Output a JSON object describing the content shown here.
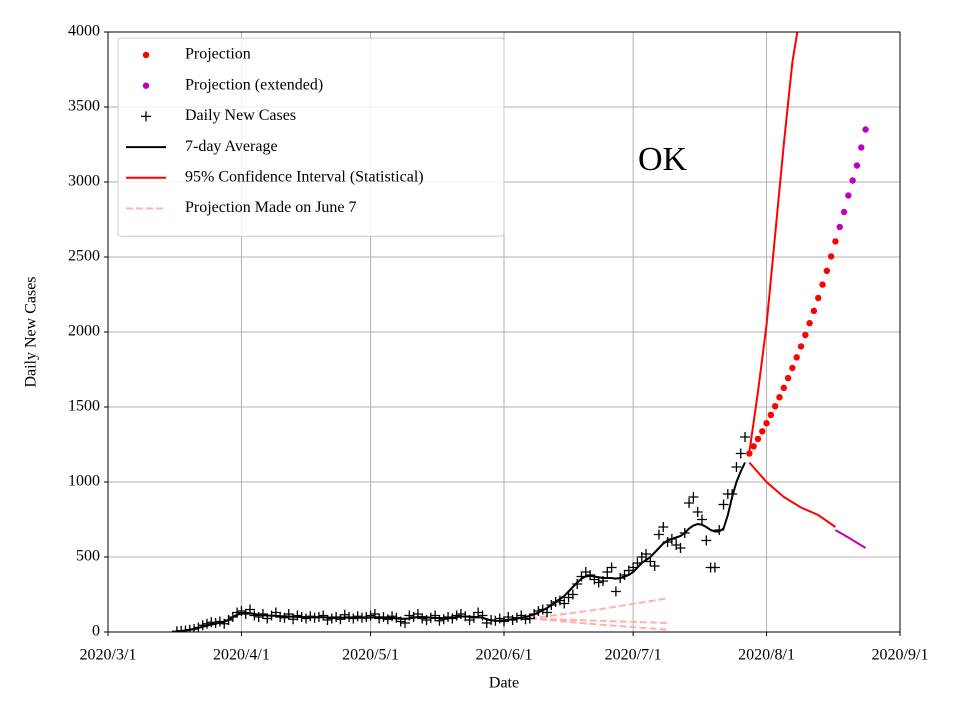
{
  "chart_data": {
    "type": "line",
    "annotation": "OK",
    "xlabel": "Date",
    "ylabel": "Daily New Cases",
    "xlim": [
      "2020/3/1",
      "2020/9/1"
    ],
    "xticks": [
      "2020/3/1",
      "2020/4/1",
      "2020/5/1",
      "2020/6/1",
      "2020/7/1",
      "2020/8/1",
      "2020/9/1"
    ],
    "ylim": [
      0,
      4000
    ],
    "yticks": [
      0,
      500,
      1000,
      1500,
      2000,
      2500,
      3000,
      3500,
      4000
    ],
    "grid": true,
    "legend": "upper left",
    "x": [
      "2020/3/17",
      "2020/3/18",
      "2020/3/19",
      "2020/3/20",
      "2020/3/21",
      "2020/3/22",
      "2020/3/23",
      "2020/3/24",
      "2020/3/25",
      "2020/3/26",
      "2020/3/27",
      "2020/3/28",
      "2020/3/29",
      "2020/3/30",
      "2020/3/31",
      "2020/4/1",
      "2020/4/2",
      "2020/4/3",
      "2020/4/4",
      "2020/4/5",
      "2020/4/6",
      "2020/4/7",
      "2020/4/8",
      "2020/4/9",
      "2020/4/10",
      "2020/4/11",
      "2020/4/12",
      "2020/4/13",
      "2020/4/14",
      "2020/4/15",
      "2020/4/16",
      "2020/4/17",
      "2020/4/18",
      "2020/4/19",
      "2020/4/20",
      "2020/4/21",
      "2020/4/22",
      "2020/4/23",
      "2020/4/24",
      "2020/4/25",
      "2020/4/26",
      "2020/4/27",
      "2020/4/28",
      "2020/4/29",
      "2020/4/30",
      "2020/5/1",
      "2020/5/2",
      "2020/5/3",
      "2020/5/4",
      "2020/5/5",
      "2020/5/6",
      "2020/5/7",
      "2020/5/8",
      "2020/5/9",
      "2020/5/10",
      "2020/5/11",
      "2020/5/12",
      "2020/5/13",
      "2020/5/14",
      "2020/5/15",
      "2020/5/16",
      "2020/5/17",
      "2020/5/18",
      "2020/5/19",
      "2020/5/20",
      "2020/5/21",
      "2020/5/22",
      "2020/5/23",
      "2020/5/24",
      "2020/5/25",
      "2020/5/26",
      "2020/5/27",
      "2020/5/28",
      "2020/5/29",
      "2020/5/30",
      "2020/5/31",
      "2020/6/1",
      "2020/6/2",
      "2020/6/3",
      "2020/6/4",
      "2020/6/5",
      "2020/6/6",
      "2020/6/7",
      "2020/6/8",
      "2020/6/9",
      "2020/6/10",
      "2020/6/11",
      "2020/6/12",
      "2020/6/13",
      "2020/6/14",
      "2020/6/15",
      "2020/6/16",
      "2020/6/17",
      "2020/6/18",
      "2020/6/19",
      "2020/6/20",
      "2020/6/21",
      "2020/6/22",
      "2020/6/23",
      "2020/6/24",
      "2020/6/25",
      "2020/6/26",
      "2020/6/27",
      "2020/6/28",
      "2020/6/29",
      "2020/6/30",
      "2020/7/1",
      "2020/7/2",
      "2020/7/3",
      "2020/7/4",
      "2020/7/5",
      "2020/7/6",
      "2020/7/7",
      "2020/7/8",
      "2020/7/9",
      "2020/7/10",
      "2020/7/11",
      "2020/7/12",
      "2020/7/13",
      "2020/7/14",
      "2020/7/15",
      "2020/7/16",
      "2020/7/17",
      "2020/7/18",
      "2020/7/19",
      "2020/7/20",
      "2020/7/21",
      "2020/7/22",
      "2020/7/23",
      "2020/7/24",
      "2020/7/25",
      "2020/7/26",
      "2020/7/27"
    ],
    "series": [
      {
        "name": "Projection",
        "style": "dots",
        "color": "#ff0000",
        "x": [
          "2020/7/28",
          "2020/7/29",
          "2020/7/30",
          "2020/7/31",
          "2020/8/1",
          "2020/8/2",
          "2020/8/3",
          "2020/8/4",
          "2020/8/5",
          "2020/8/6",
          "2020/8/7",
          "2020/8/8",
          "2020/8/9",
          "2020/8/10",
          "2020/8/11",
          "2020/8/12",
          "2020/8/13",
          "2020/8/14",
          "2020/8/15",
          "2020/8/16",
          "2020/8/17"
        ],
        "values": [
          1190,
          1238,
          1287,
          1338,
          1392,
          1447,
          1505,
          1565,
          1628,
          1693,
          1760,
          1831,
          1904,
          1980,
          2059,
          2141,
          2227,
          2316,
          2408,
          2504,
          2604
        ]
      },
      {
        "name": "Projection (extended)",
        "style": "dots",
        "color": "#bf00bf",
        "x": [
          "2020/8/18",
          "2020/8/19",
          "2020/8/20",
          "2020/8/21",
          "2020/8/22",
          "2020/8/23",
          "2020/8/24"
        ],
        "values": [
          2700,
          2800,
          2910,
          3010,
          3110,
          3230,
          3350
        ]
      },
      {
        "name": "Daily New Cases",
        "style": "plus",
        "color": "#000000",
        "values": [
          5,
          8,
          10,
          15,
          20,
          30,
          45,
          55,
          65,
          60,
          70,
          55,
          80,
          100,
          130,
          140,
          120,
          150,
          110,
          100,
          120,
          90,
          110,
          130,
          100,
          95,
          120,
          85,
          110,
          100,
          90,
          105,
          95,
          100,
          110,
          80,
          90,
          100,
          85,
          115,
          100,
          90,
          105,
          95,
          100,
          110,
          120,
          90,
          100,
          85,
          105,
          95,
          70,
          60,
          110,
          100,
          120,
          90,
          80,
          95,
          110,
          75,
          85,
          100,
          90,
          110,
          120,
          105,
          80,
          95,
          130,
          110,
          60,
          80,
          75,
          90,
          70,
          100,
          80,
          95,
          110,
          85,
          90,
          120,
          140,
          150,
          130,
          180,
          200,
          210,
          190,
          230,
          250,
          320,
          370,
          400,
          380,
          350,
          330,
          340,
          400,
          430,
          270,
          360,
          380,
          410,
          430,
          460,
          500,
          520,
          470,
          440,
          650,
          700,
          600,
          620,
          580,
          560,
          660,
          860,
          900,
          800,
          750,
          610,
          430,
          430,
          680,
          850,
          920,
          920,
          1100,
          1190,
          1300
        ]
      },
      {
        "name": "7-day Average",
        "style": "line",
        "color": "#000000",
        "values": [
          3,
          6,
          10,
          15,
          20,
          28,
          35,
          42,
          50,
          55,
          62,
          68,
          80,
          100,
          115,
          125,
          128,
          125,
          120,
          115,
          112,
          110,
          108,
          108,
          105,
          105,
          103,
          102,
          102,
          100,
          100,
          100,
          100,
          98,
          98,
          97,
          97,
          97,
          96,
          96,
          96,
          95,
          95,
          95,
          95,
          97,
          98,
          98,
          97,
          95,
          93,
          90,
          88,
          88,
          90,
          95,
          100,
          100,
          98,
          95,
          93,
          93,
          92,
          93,
          95,
          100,
          103,
          103,
          102,
          100,
          100,
          95,
          85,
          78,
          75,
          74,
          78,
          82,
          86,
          90,
          95,
          100,
          108,
          118,
          130,
          145,
          160,
          180,
          200,
          220,
          240,
          270,
          300,
          330,
          355,
          370,
          375,
          370,
          365,
          360,
          360,
          360,
          355,
          360,
          370,
          380,
          400,
          430,
          460,
          480,
          500,
          530,
          560,
          590,
          610,
          620,
          630,
          640,
          660,
          690,
          710,
          720,
          715,
          700,
          680,
          670,
          670,
          690,
          780,
          900,
          1000,
          1070,
          1130
        ]
      },
      {
        "name": "95% Confidence Interval (Statistical)",
        "style": "line",
        "color": "#ff0000",
        "x": [
          "2020/7/28",
          "2020/7/30",
          "2020/8/1",
          "2020/8/3",
          "2020/8/5",
          "2020/8/7",
          "2020/8/9"
        ],
        "values": [
          1200,
          1600,
          2050,
          2650,
          3250,
          3800,
          4150
        ]
      },
      {
        "style": "line",
        "color": "#ff0000",
        "x": [
          "2020/7/28",
          "2020/8/1",
          "2020/8/5",
          "2020/8/9",
          "2020/8/13",
          "2020/8/17"
        ],
        "values": [
          1130,
          1000,
          900,
          830,
          780,
          700
        ]
      },
      {
        "style": "line",
        "color": "#bf00bf",
        "x": [
          "2020/8/17",
          "2020/8/20",
          "2020/8/24"
        ],
        "values": [
          680,
          630,
          560
        ]
      },
      {
        "name": "Projection Made on June 7",
        "style": "dashed",
        "color": "#ffb0b0",
        "x": [
          "2020/6/7",
          "2020/6/23",
          "2020/7/9"
        ],
        "values": [
          90,
          150,
          225
        ]
      },
      {
        "style": "dashed",
        "color": "#ffb0b0",
        "x": [
          "2020/6/7",
          "2020/6/23",
          "2020/7/9"
        ],
        "values": [
          90,
          75,
          60
        ]
      },
      {
        "style": "dashed",
        "color": "#ffb0b0",
        "x": [
          "2020/6/7",
          "2020/6/23",
          "2020/7/9"
        ],
        "values": [
          90,
          50,
          15
        ]
      }
    ]
  }
}
